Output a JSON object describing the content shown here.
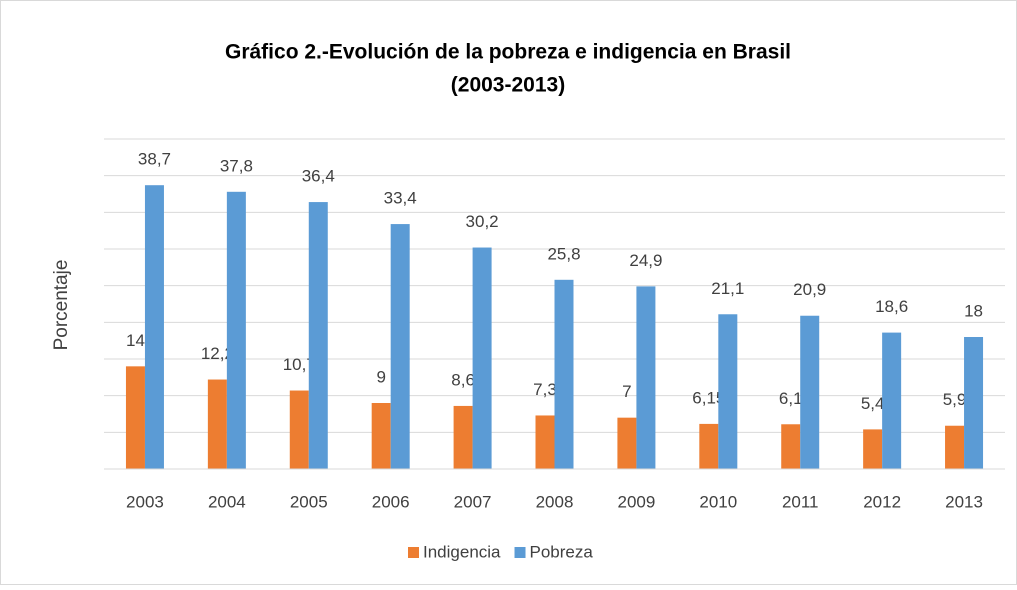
{
  "chart_data": {
    "type": "bar",
    "title": [
      "Gráfico 2.-Evolución de la pobreza e indigencia en Brasil",
      "(2003-2013)"
    ],
    "y_label": "Porcentaje",
    "categories": [
      "2003",
      "2004",
      "2005",
      "2006",
      "2007",
      "2008",
      "2009",
      "2010",
      "2011",
      "2012",
      "2013"
    ],
    "series": [
      {
        "name": "Indigencia",
        "color": "#ed7d31",
        "values": [
          14,
          12.2,
          10.7,
          9,
          8.6,
          7.3,
          7,
          6.15,
          6.1,
          5.4,
          5.9
        ],
        "value_labels": [
          "14",
          "12,2",
          "10,7",
          "9",
          "8,6",
          "7,3",
          "7",
          "6,15",
          "6,1",
          "5,4",
          "5,9"
        ]
      },
      {
        "name": "Pobreza",
        "color": "#5b9bd5",
        "values": [
          38.7,
          37.8,
          36.4,
          33.4,
          30.2,
          25.8,
          24.9,
          21.1,
          20.9,
          18.6,
          18
        ],
        "value_labels": [
          "38,7",
          "37,8",
          "36,4",
          "33,4",
          "30,2",
          "25,8",
          "24,9",
          "21,1",
          "20,9",
          "18,6",
          "18"
        ]
      }
    ],
    "ylim": [
      0,
      45
    ],
    "yticks": [
      0,
      5,
      10,
      15,
      20,
      25,
      30,
      35,
      40,
      45
    ],
    "grid": true,
    "legend": "bottom"
  }
}
